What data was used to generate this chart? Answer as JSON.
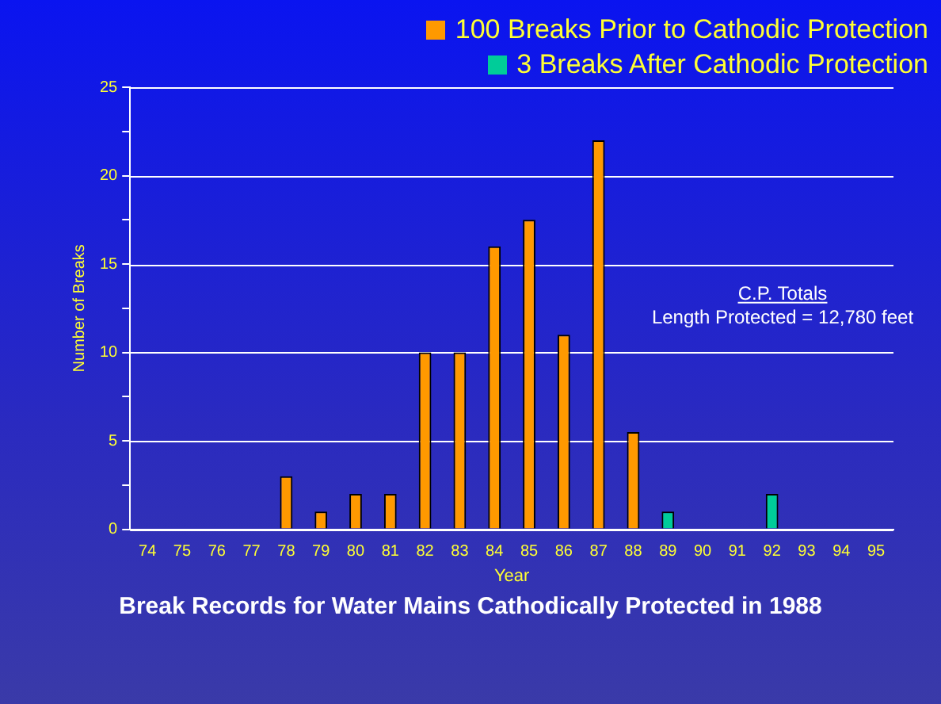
{
  "chart_data": {
    "type": "bar",
    "title": "Break Records for Water Mains Cathodically Protected in 1988",
    "xlabel": "Year",
    "ylabel": "Number of Breaks",
    "categories": [
      "74",
      "75",
      "76",
      "77",
      "78",
      "79",
      "80",
      "81",
      "82",
      "83",
      "84",
      "85",
      "86",
      "87",
      "88",
      "89",
      "90",
      "91",
      "92",
      "93",
      "94",
      "95"
    ],
    "series": [
      {
        "name": "100 Breaks Prior to Cathodic Protection",
        "color": "#ff9900",
        "values": [
          null,
          null,
          null,
          null,
          3,
          1,
          2,
          2,
          10,
          10,
          16,
          17.5,
          11,
          22,
          5.5,
          null,
          null,
          null,
          null,
          null,
          null,
          null
        ]
      },
      {
        "name": "3 Breaks After Cathodic Protection",
        "color": "#00cc99",
        "values": [
          null,
          null,
          null,
          null,
          null,
          null,
          null,
          null,
          null,
          null,
          null,
          null,
          null,
          null,
          null,
          1,
          null,
          null,
          2,
          null,
          null,
          null
        ]
      }
    ],
    "ylim": [
      0,
      25
    ],
    "yticks": [
      0,
      {
        "value": 2.5,
        "label": null
      },
      5,
      {
        "value": 7.5,
        "label": null
      },
      10,
      {
        "value": 12.5,
        "label": null
      },
      15,
      {
        "value": 17.5,
        "label": null
      },
      20,
      {
        "value": 22.5,
        "label": null
      },
      25
    ],
    "grid": "y",
    "legend": "top right",
    "annotations": [
      "C.P. Totals",
      "Length Protected = 12,780 feet"
    ]
  }
}
